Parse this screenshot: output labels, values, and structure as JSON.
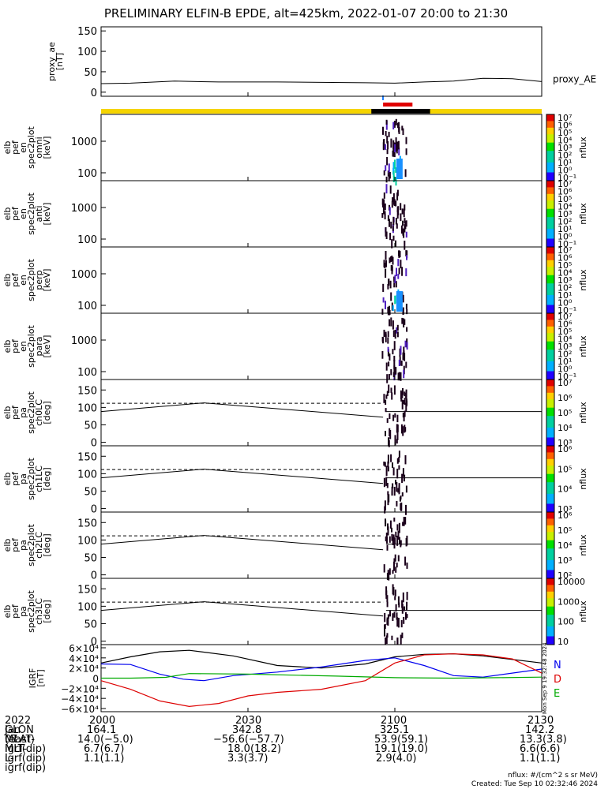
{
  "title": "PRELIMINARY ELFIN-B EPDE, alt=425km, 2022-01-07 20:00 to 21:30",
  "chart_data": {
    "type": "line",
    "time_range_hours": [
      20.0,
      21.5
    ],
    "x_ticks": [
      {
        "t": 20.0,
        "label": "2000"
      },
      {
        "t": 20.5,
        "label": "2030"
      },
      {
        "t": 21.0,
        "label": "2100"
      },
      {
        "t": 21.5,
        "label": "2130"
      }
    ],
    "panels": [
      {
        "id": "proxy_ae",
        "kind": "line",
        "ylabel": [
          "proxy_ae",
          "[nT]"
        ],
        "ylim": [
          -10,
          160
        ],
        "yticks": [
          "150",
          "100",
          "50",
          "0"
        ],
        "ytick_values": [
          150,
          100,
          50,
          0
        ],
        "legend": "proxy_AE",
        "color": "#000000",
        "series": {
          "t": [
            20.0,
            20.1,
            20.25,
            20.4,
            20.6,
            20.75,
            20.9,
            21.0,
            21.1,
            21.2,
            21.3,
            21.4,
            21.5
          ],
          "v": [
            21,
            22,
            27,
            25,
            25,
            24,
            23,
            22,
            25,
            27,
            34,
            33,
            26
          ]
        }
      },
      {
        "id": "en_omni",
        "kind": "spec",
        "ylabel": [
          "elb",
          "pef",
          "en",
          "spec2plot",
          "omni",
          "[keV]"
        ],
        "yticks": [
          "1000",
          "100"
        ],
        "cbar_label": "nflux",
        "cbar_ticks": [
          "10⁷",
          "10⁶",
          "10⁵",
          "10⁴",
          "10³",
          "10²",
          "10¹",
          "10⁰",
          "10⁻¹"
        ]
      },
      {
        "id": "en_anti",
        "kind": "spec",
        "ylabel": [
          "elb",
          "pef",
          "en",
          "spec2plot",
          "anti",
          "[keV]"
        ],
        "yticks": [
          "1000",
          "100"
        ],
        "cbar_label": "nflux",
        "cbar_ticks": [
          "10⁷",
          "10⁶",
          "10⁵",
          "10⁴",
          "10³",
          "10²",
          "10¹",
          "10⁰",
          "10⁻¹"
        ]
      },
      {
        "id": "en_perp",
        "kind": "spec",
        "ylabel": [
          "elb",
          "pef",
          "en",
          "spec2plot",
          "perp",
          "[keV]"
        ],
        "yticks": [
          "1000",
          "100"
        ],
        "cbar_label": "nflux",
        "cbar_ticks": [
          "10⁷",
          "10⁶",
          "10⁵",
          "10⁴",
          "10³",
          "10²",
          "10¹",
          "10⁰",
          "10⁻¹"
        ]
      },
      {
        "id": "en_para",
        "kind": "spec",
        "ylabel": [
          "elb",
          "pef",
          "en",
          "spec2plot",
          "para",
          "[keV]"
        ],
        "yticks": [
          "1000",
          "100"
        ],
        "cbar_label": "nflux",
        "cbar_ticks": [
          "10⁷",
          "10⁶",
          "10⁵",
          "10⁴",
          "10³",
          "10²",
          "10¹",
          "10⁰",
          "10⁻¹"
        ]
      },
      {
        "id": "pa_ch0",
        "kind": "pa",
        "ylabel": [
          "elb",
          "pef",
          "pa",
          "spec2plot",
          "ch0LC",
          "[deg]"
        ],
        "yticks": [
          "150",
          "100",
          "50",
          "0"
        ],
        "cbar_label": "nflux",
        "cbar_ticks": [
          "10⁷",
          "10⁶",
          "10⁵",
          "10⁴",
          "10³"
        ]
      },
      {
        "id": "pa_ch1",
        "kind": "pa",
        "ylabel": [
          "elb",
          "pef",
          "pa",
          "spec2plot",
          "ch1LC",
          "[deg]"
        ],
        "yticks": [
          "150",
          "100",
          "50",
          "0"
        ],
        "cbar_label": "nflux",
        "cbar_ticks": [
          "10⁶",
          "10⁵",
          "10⁴",
          "10³"
        ]
      },
      {
        "id": "pa_ch2",
        "kind": "pa",
        "ylabel": [
          "elb",
          "pef",
          "pa",
          "spec2plot",
          "ch2LC",
          "[deg]"
        ],
        "yticks": [
          "150",
          "100",
          "50",
          "0"
        ],
        "cbar_label": "nflux",
        "cbar_ticks": [
          "10⁶",
          "10⁵",
          "10⁴",
          "10³",
          "10²"
        ]
      },
      {
        "id": "pa_ch3",
        "kind": "pa",
        "ylabel": [
          "elb",
          "pef",
          "pa",
          "spec2plot",
          "ch3LC",
          "[deg]"
        ],
        "yticks": [
          "150",
          "100",
          "50",
          "0"
        ],
        "cbar_label": "nflux",
        "cbar_ticks": [
          "10000",
          "1000",
          "100",
          "10"
        ]
      },
      {
        "id": "igrf",
        "kind": "igrf",
        "ylabel": [
          "IGRF",
          "[nT]"
        ],
        "yticks": [
          "6×10⁴",
          "4×10⁴",
          "2×10⁴",
          "0",
          "−2×10⁴",
          "−4×10⁴",
          "−6×10⁴"
        ],
        "legend": [
          "N",
          "D",
          "E"
        ],
        "series": [
          {
            "name": "black",
            "color": "#000000",
            "t": [
              20.0,
              20.1,
              20.2,
              20.3,
              20.45,
              20.6,
              20.75,
              20.9,
              21.0,
              21.1,
              21.2,
              21.3,
              21.5
            ],
            "v": [
              30000,
              42000,
              52000,
              55000,
              44000,
              25000,
              20000,
              28000,
              42000,
              47000,
              48000,
              44000,
              30000
            ]
          },
          {
            "name": "blue",
            "color": "#0000ee",
            "t": [
              20.0,
              20.1,
              20.2,
              20.28,
              20.35,
              20.45,
              20.6,
              20.75,
              20.9,
              21.0,
              21.1,
              21.2,
              21.3,
              21.5
            ],
            "v": [
              28000,
              27000,
              8000,
              -2000,
              -5000,
              5000,
              12000,
              22000,
              35000,
              40000,
              25000,
              5000,
              2000,
              18000
            ]
          },
          {
            "name": "red",
            "color": "#dd0000",
            "t": [
              20.0,
              20.1,
              20.2,
              20.3,
              20.4,
              20.5,
              20.6,
              20.75,
              20.9,
              21.0,
              21.1,
              21.2,
              21.3,
              21.4,
              21.5
            ],
            "v": [
              -5000,
              -22000,
              -45000,
              -56000,
              -50000,
              -35000,
              -28000,
              -22000,
              -5000,
              30000,
              46000,
              48000,
              46000,
              38000,
              10000
            ]
          },
          {
            "name": "green",
            "color": "#00aa00",
            "t": [
              20.0,
              20.1,
              20.22,
              20.3,
              20.5,
              20.8,
              21.0,
              21.2,
              21.35,
              21.5
            ],
            "v": [
              0,
              0,
              1500,
              9000,
              8000,
              4000,
              1000,
              0,
              1000,
              2000
            ]
          }
        ]
      }
    ],
    "orbit_bar": {
      "yellow": [
        20.0,
        21.5
      ],
      "black": [
        20.92,
        21.12
      ],
      "red": [
        20.96,
        21.06
      ],
      "blue_tick": 20.957
    },
    "reference_lines": {
      "dashed_deg": 112,
      "solid_deg": 88
    }
  },
  "bottom_table": {
    "rows": [
      {
        "label": "2022 Jan 07",
        "values": [
          "2000",
          "2030",
          "2100",
          "2130"
        ]
      },
      {
        "label": "GLON (east)",
        "values": [
          "164.1",
          "342.8",
          "325.1",
          "142.2"
        ]
      },
      {
        "label": "MLAT-igrf(dip)",
        "values": [
          "14.0(−5.0)",
          "−56.6(−57.7)",
          "53.9(59.1)",
          "13.3(3.8)"
        ]
      },
      {
        "label": "MLT-igrf(dip)",
        "values": [
          "6.7(6.7)",
          "18.0(18.2)",
          "19.1(19.0)",
          "6.6(6.6)"
        ]
      },
      {
        "label": "L-igrf(dip)",
        "values": [
          "1.1(1.1)",
          "3.3(3.7)",
          "2.9(4.0)",
          "1.1(1.1)"
        ]
      }
    ]
  },
  "footer": {
    "units": "nflux: #/(cm^2 s sr MeV)",
    "created": "Created: Tue Sep 10 02:32:46 2024",
    "side_stamp": "Mon Sep  9 19:32:48 2024"
  }
}
